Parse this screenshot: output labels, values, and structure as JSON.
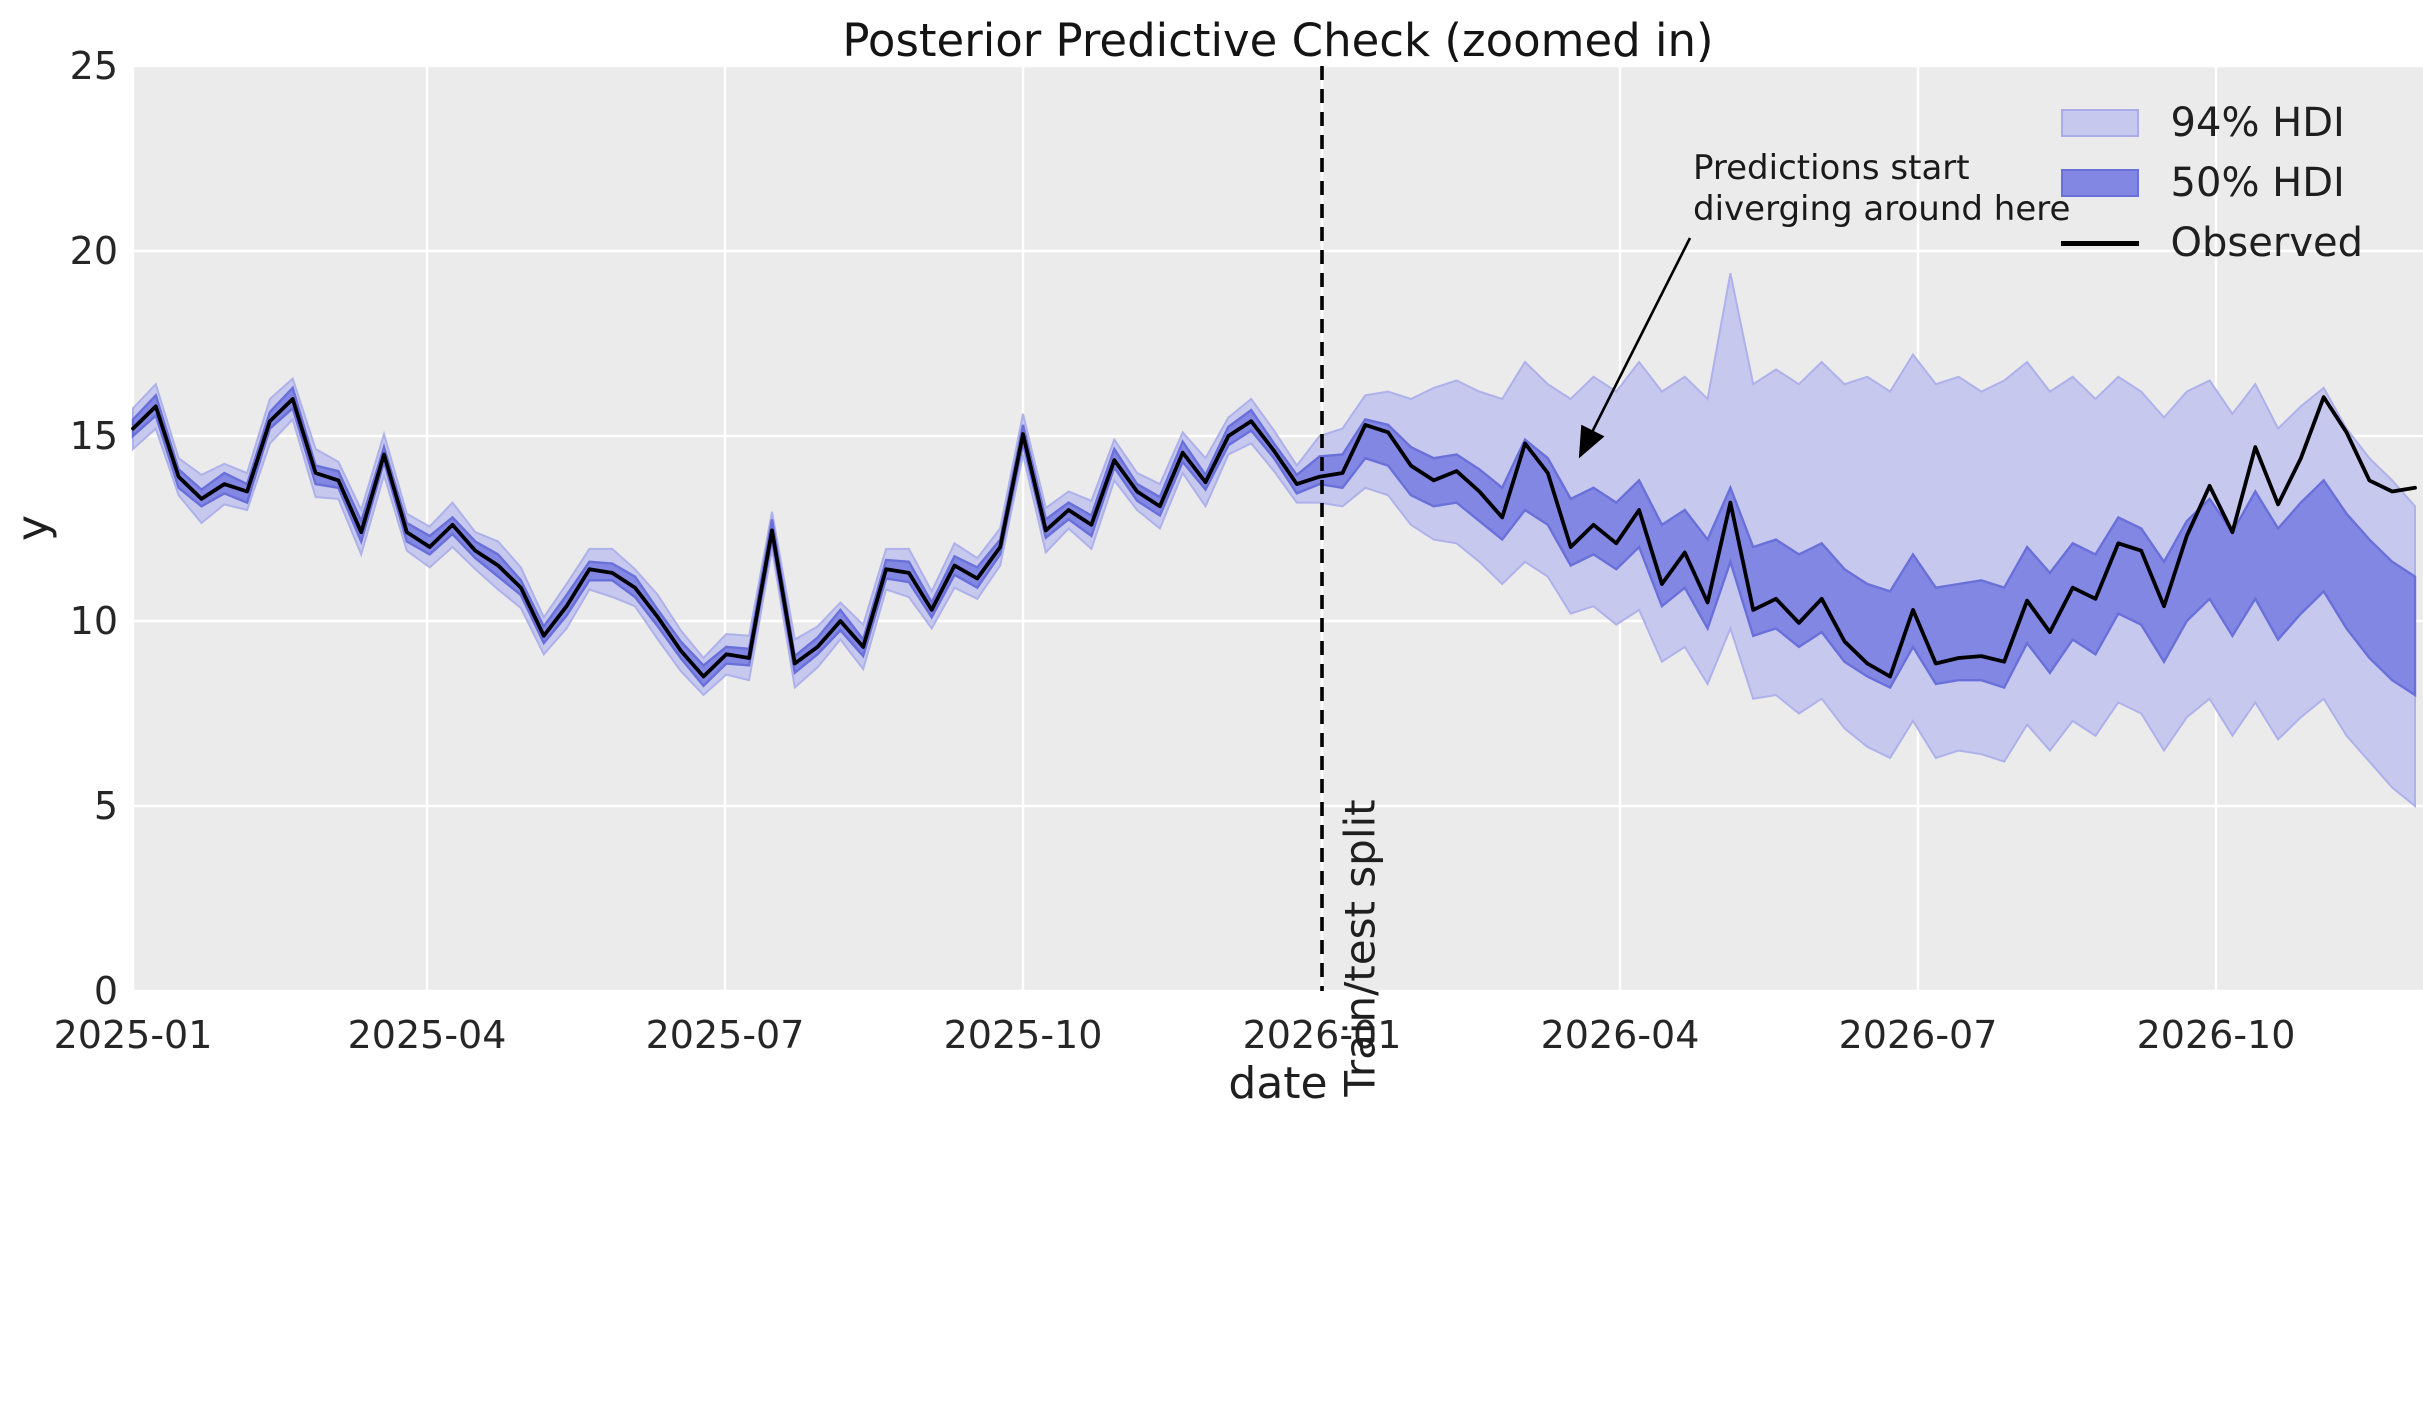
{
  "title": "Posterior Predictive Check (zoomed in)",
  "axes": {
    "xlabel": "date",
    "ylabel": "y",
    "x_tick_labels": [
      "2025-01",
      "2025-04",
      "2025-07",
      "2025-10",
      "2026-01",
      "2026-04",
      "2026-07",
      "2026-10"
    ],
    "y_tick_labels": [
      "0",
      "5",
      "10",
      "15",
      "20",
      "25"
    ]
  },
  "legend": {
    "items": [
      {
        "label": "94% HDI",
        "type": "patch",
        "swatch_fill": "#c6c8ee",
        "swatch_edge": "#a9ade9"
      },
      {
        "label": "50% HDI",
        "type": "patch",
        "swatch_fill": "#8287e3",
        "swatch_edge": "#6a70d9"
      },
      {
        "label": "Observed",
        "type": "line",
        "swatch_fill": "#000000"
      }
    ]
  },
  "annotation": {
    "line1": "Predictions start",
    "line2": "diverging around here"
  },
  "split_line_label": "Train/test split",
  "colors": {
    "figure_bg": "#ffffff",
    "plot_bg": "#ebebeb",
    "grid": "#ffffff",
    "hdi94_fill": "#c6c8ee",
    "hdi94_edge": "#aeb1ea",
    "hdi50_fill": "#8287e3",
    "hdi50_edge": "#6a70d9",
    "observed_line": "#000000",
    "split_line": "#000000",
    "text": "#1f1f1f"
  },
  "chart_data": {
    "type": "line",
    "title": "Posterior Predictive Check (zoomed in)",
    "xlabel": "date",
    "ylabel": "y",
    "ylim": [
      0,
      25
    ],
    "x_range": [
      "2025-01",
      "2026-12"
    ],
    "frequency": "weekly (estimated from plot)",
    "x_tick_labels": [
      "2025-01",
      "2025-04",
      "2025-07",
      "2025-10",
      "2026-01",
      "2026-04",
      "2026-07",
      "2026-10"
    ],
    "y_tick_values": [
      0,
      5,
      10,
      15,
      20,
      25
    ],
    "grid": true,
    "legend_position": "upper right",
    "split": {
      "index": 52,
      "at_x": "2026-01",
      "label": "Train/test split"
    },
    "annotation_text": "Predictions start diverging around here",
    "observed": [
      15.2,
      15.8,
      13.9,
      13.3,
      13.7,
      13.5,
      15.4,
      16.0,
      14.0,
      13.8,
      12.4,
      14.5,
      12.4,
      12.0,
      12.6,
      11.9,
      11.5,
      10.9,
      9.6,
      10.4,
      11.4,
      11.3,
      10.9,
      10.1,
      9.2,
      8.5,
      9.1,
      9.0,
      12.45,
      8.85,
      9.3,
      10.0,
      9.3,
      11.4,
      11.3,
      10.3,
      11.5,
      11.15,
      12.0,
      15.05,
      12.45,
      13.0,
      12.6,
      14.35,
      13.5,
      13.1,
      14.55,
      13.75,
      15.0,
      15.4,
      14.6,
      13.7,
      13.9,
      14.0,
      15.3,
      15.1,
      14.2,
      13.8,
      14.05,
      13.5,
      12.8,
      14.8,
      14.0,
      12.0,
      12.6,
      12.1,
      13.0,
      11.0,
      11.85,
      10.5,
      13.2,
      10.3,
      10.6,
      9.95,
      10.6,
      9.45,
      8.85,
      8.5,
      10.3,
      8.85,
      9.0,
      9.05,
      8.9,
      10.55,
      9.7,
      10.9,
      10.6,
      12.1,
      11.9,
      10.4,
      12.3,
      13.65,
      12.4,
      14.7,
      13.15,
      14.4,
      16.05,
      15.1,
      13.8,
      13.5,
      13.6
    ],
    "hdi94_upper": [
      15.75,
      16.4,
      14.4,
      13.95,
      14.25,
      14.0,
      16.0,
      16.55,
      14.65,
      14.3,
      13.0,
      15.05,
      12.9,
      12.55,
      13.2,
      12.4,
      12.15,
      11.45,
      10.1,
      11.0,
      11.95,
      11.95,
      11.4,
      10.7,
      9.75,
      9.0,
      9.65,
      9.6,
      12.95,
      9.5,
      9.85,
      10.5,
      9.9,
      11.95,
      11.95,
      10.8,
      12.1,
      11.7,
      12.5,
      15.6,
      13.05,
      13.5,
      13.25,
      14.9,
      14.0,
      13.7,
      15.1,
      14.4,
      15.5,
      16.0,
      15.15,
      14.2,
      15.0,
      15.2,
      16.1,
      16.2,
      16.0,
      16.3,
      16.5,
      16.2,
      16.0,
      17.0,
      16.4,
      16.0,
      16.6,
      16.2,
      17.0,
      16.2,
      16.6,
      16.0,
      19.4,
      16.4,
      16.8,
      16.4,
      17.0,
      16.4,
      16.6,
      16.2,
      17.2,
      16.4,
      16.6,
      16.2,
      16.5,
      17.0,
      16.2,
      16.6,
      16.0,
      16.6,
      16.2,
      15.5,
      16.2,
      16.5,
      15.6,
      16.4,
      15.2,
      15.8,
      16.3,
      15.2,
      14.4,
      13.8,
      13.1
    ],
    "hdi94_lower": [
      14.65,
      15.2,
      13.4,
      12.65,
      13.15,
      13.0,
      14.8,
      15.45,
      13.35,
      13.3,
      11.8,
      13.95,
      11.9,
      11.45,
      12.0,
      11.4,
      10.85,
      10.35,
      9.1,
      9.8,
      10.85,
      10.65,
      10.4,
      9.5,
      8.65,
      8.0,
      8.55,
      8.4,
      11.95,
      8.2,
      8.75,
      9.5,
      8.7,
      10.85,
      10.65,
      9.8,
      10.9,
      10.6,
      11.5,
      14.5,
      11.85,
      12.5,
      11.95,
      13.8,
      13.0,
      12.5,
      14.0,
      13.1,
      14.5,
      14.8,
      14.05,
      13.2,
      13.2,
      13.1,
      13.6,
      13.4,
      12.6,
      12.2,
      12.1,
      11.6,
      11.0,
      11.6,
      11.2,
      10.2,
      10.4,
      9.9,
      10.3,
      8.9,
      9.3,
      8.3,
      9.8,
      7.9,
      8.0,
      7.5,
      7.9,
      7.1,
      6.6,
      6.3,
      7.3,
      6.3,
      6.5,
      6.4,
      6.2,
      7.2,
      6.5,
      7.3,
      6.9,
      7.8,
      7.5,
      6.5,
      7.4,
      7.9,
      6.9,
      7.8,
      6.8,
      7.4,
      7.9,
      6.9,
      6.2,
      5.5,
      5.0
    ],
    "hdi50_upper": [
      15.45,
      16.1,
      14.1,
      13.55,
      14.0,
      13.7,
      15.65,
      16.3,
      14.2,
      14.05,
      12.7,
      14.7,
      12.65,
      12.3,
      12.8,
      12.15,
      11.8,
      11.1,
      9.85,
      10.7,
      11.6,
      11.55,
      11.2,
      10.3,
      9.45,
      8.8,
      9.3,
      9.25,
      12.75,
      9.05,
      9.55,
      10.3,
      9.5,
      11.65,
      11.6,
      10.5,
      11.75,
      11.45,
      12.2,
      15.3,
      12.75,
      13.2,
      12.85,
      14.65,
      13.7,
      13.35,
      14.85,
      13.95,
      15.25,
      15.7,
      14.8,
      13.95,
      14.45,
      14.5,
      15.45,
      15.3,
      14.7,
      14.4,
      14.5,
      14.1,
      13.6,
      14.9,
      14.4,
      13.3,
      13.6,
      13.2,
      13.8,
      12.6,
      13.0,
      12.2,
      13.6,
      12.0,
      12.2,
      11.8,
      12.1,
      11.4,
      11.0,
      10.8,
      11.8,
      10.9,
      11.0,
      11.1,
      10.9,
      12.0,
      11.3,
      12.1,
      11.8,
      12.8,
      12.5,
      11.6,
      12.7,
      13.3,
      12.4,
      13.5,
      12.5,
      13.2,
      13.8,
      12.9,
      12.2,
      11.6,
      11.2
    ],
    "hdi50_lower": [
      15.0,
      15.55,
      13.6,
      13.1,
      13.45,
      13.2,
      15.2,
      15.75,
      13.7,
      13.6,
      12.15,
      14.3,
      12.15,
      11.8,
      12.35,
      11.7,
      11.2,
      10.7,
      9.4,
      10.15,
      11.1,
      11.1,
      10.65,
      9.85,
      9.0,
      8.25,
      8.85,
      8.8,
      12.2,
      8.6,
      9.1,
      9.75,
      9.05,
      11.15,
      11.05,
      10.1,
      11.25,
      10.9,
      11.8,
      14.8,
      12.25,
      12.75,
      12.3,
      14.15,
      13.25,
      12.85,
      14.3,
      13.55,
      14.75,
      15.15,
      14.4,
      13.45,
      13.7,
      13.6,
      14.4,
      14.2,
      13.4,
      13.1,
      13.2,
      12.7,
      12.2,
      13.0,
      12.6,
      11.5,
      11.8,
      11.4,
      12.0,
      10.4,
      10.9,
      9.8,
      11.6,
      9.6,
      9.8,
      9.3,
      9.7,
      8.9,
      8.5,
      8.2,
      9.3,
      8.3,
      8.4,
      8.4,
      8.2,
      9.4,
      8.6,
      9.5,
      9.1,
      10.2,
      9.9,
      8.9,
      10.0,
      10.6,
      9.6,
      10.6,
      9.5,
      10.2,
      10.8,
      9.8,
      9.0,
      8.4,
      8.0
    ]
  }
}
